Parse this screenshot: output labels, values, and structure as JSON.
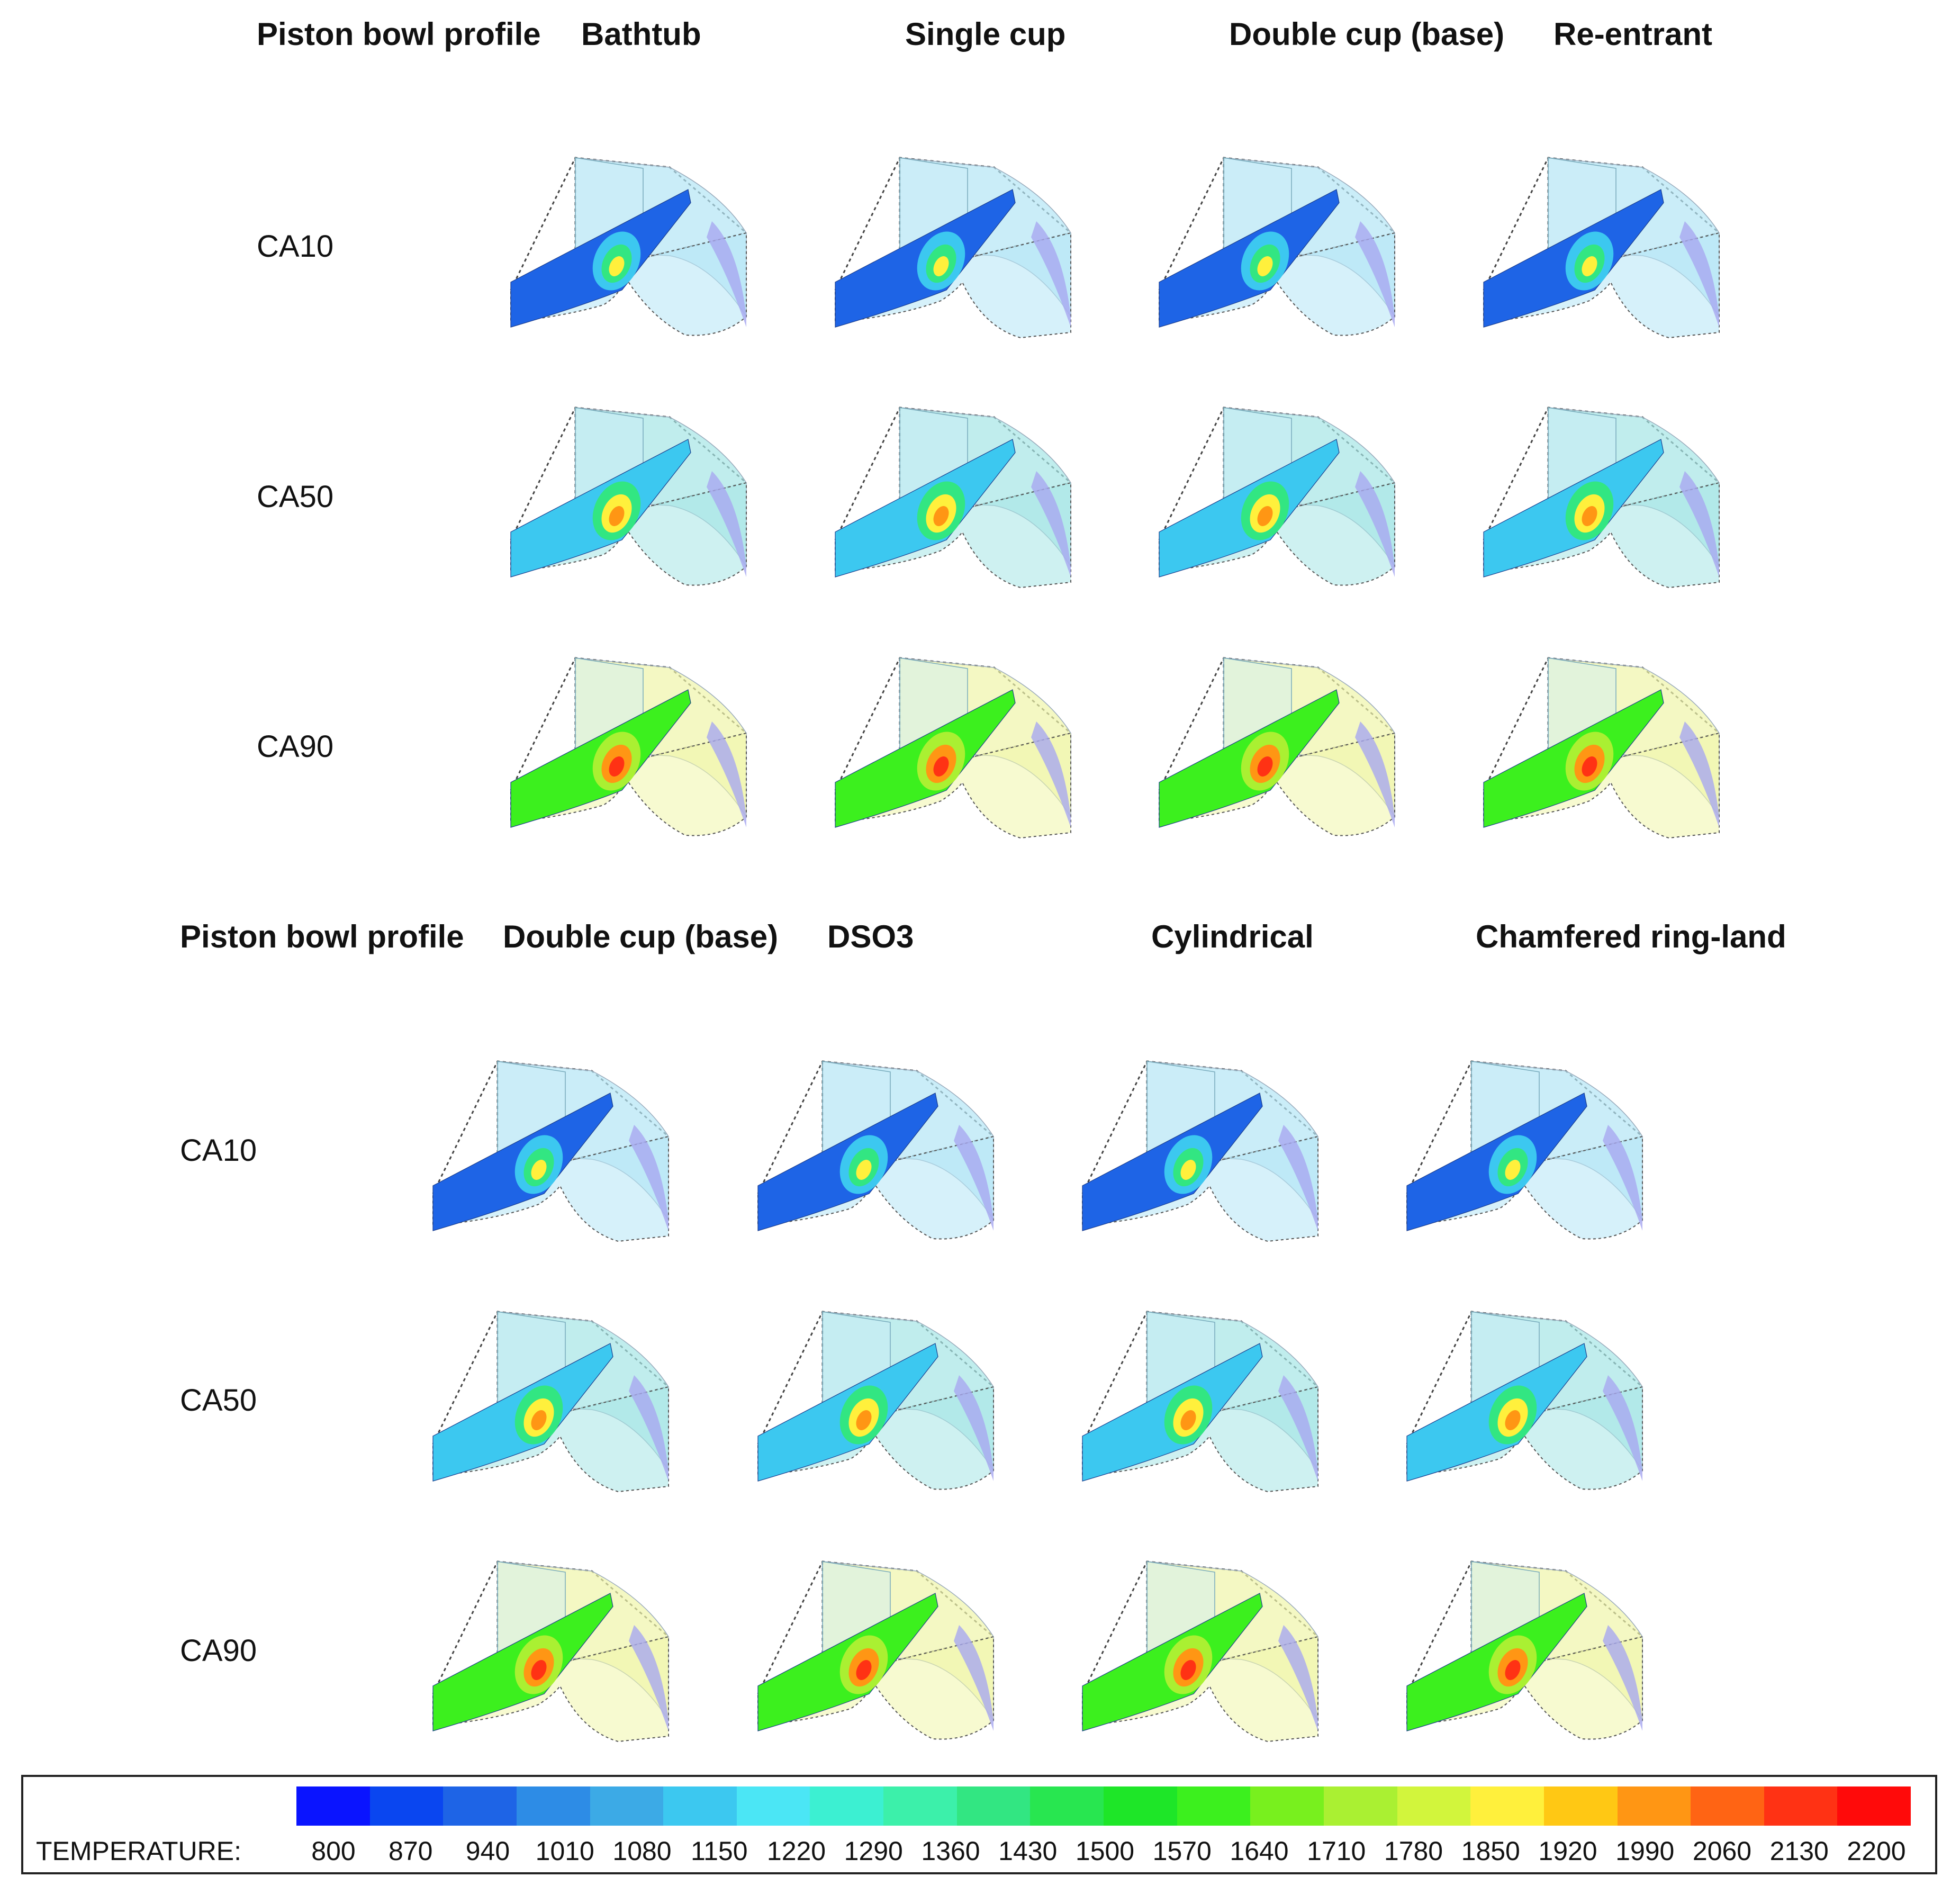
{
  "panel_top": {
    "header_label": "Piston bowl profile",
    "columns": [
      "Bathtub",
      "Single cup",
      "Double cup (base)",
      "Re-entrant"
    ],
    "rows": [
      "CA10",
      "CA50",
      "CA90"
    ]
  },
  "panel_bottom": {
    "header_label": "Piston bowl profile",
    "columns": [
      "Double cup (base)",
      "DSO3",
      "Cylindrical",
      "Chamfered ring-land"
    ],
    "rows": [
      "CA10",
      "CA50",
      "CA90"
    ]
  },
  "legend": {
    "title": "TEMPERATURE:",
    "ticks": [
      "800",
      "870",
      "940",
      "1010",
      "1080",
      "1150",
      "1220",
      "1290",
      "1360",
      "1430",
      "1500",
      "1570",
      "1640",
      "1710",
      "1780",
      "1850",
      "1920",
      "1990",
      "2060",
      "2130",
      "2200"
    ],
    "colors": [
      "#0a14ff",
      "#0a46f0",
      "#1e64e6",
      "#2d8ce6",
      "#3caae6",
      "#3cc8f0",
      "#4be6f5",
      "#3cf0d2",
      "#3cf0aa",
      "#32e682",
      "#28e650",
      "#1ee628",
      "#3cf01e",
      "#78f01e",
      "#aaf032",
      "#d2f53c",
      "#fff03c",
      "#ffc814",
      "#ff9614",
      "#ff6414",
      "#ff3214",
      "#ff0a0a"
    ]
  },
  "stage_colors": {
    "CA10": {
      "slab": "#1e64e6",
      "back": "#b4e6f5",
      "kernel_outer": "#3cc8f0",
      "kernel_mid": "#32e682",
      "kernel_core": "#fff03c"
    },
    "CA50": {
      "slab": "#3cc8f0",
      "back": "#a5e6e6",
      "kernel_outer": "#32e682",
      "kernel_mid": "#fff03c",
      "kernel_core": "#ff9614"
    },
    "CA90": {
      "slab": "#3cf01e",
      "back": "#f0f5aa",
      "kernel_outer": "#aaf032",
      "kernel_mid": "#ff9614",
      "kernel_core": "#ff3214"
    }
  }
}
